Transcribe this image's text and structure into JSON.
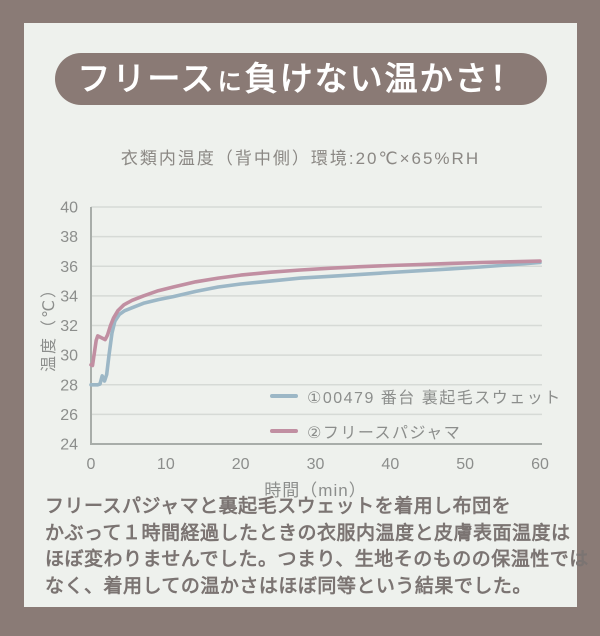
{
  "colors": {
    "background": "#8a7b76",
    "card": "#eef1ed",
    "banner": "#8a7a75",
    "banner_text": "#ffffff",
    "subtitle_text": "#8b8884",
    "caption_text": "#7b7472",
    "tick_text": "#8c8e8c",
    "grid": "#d6dad6",
    "axis": "#a8ada9",
    "series_blue": "#9cb7c6",
    "series_pink": "#c18fa2"
  },
  "title": {
    "seg1": "フリース",
    "seg2": "に",
    "seg3": "負けない温かさ！"
  },
  "subtitle": "衣類内温度（背中側）環境:20℃×65%RH",
  "chart_data": {
    "type": "line",
    "title": "衣類内温度（背中側）環境:20℃×65%RH",
    "xlabel": "時間（min）",
    "ylabel": "温度（℃）",
    "xlim": [
      0,
      60
    ],
    "ylim": [
      24,
      40
    ],
    "x_ticks": [
      0,
      10,
      20,
      30,
      40,
      50,
      60
    ],
    "y_ticks": [
      24,
      26,
      28,
      30,
      32,
      34,
      36,
      38,
      40
    ],
    "grid": true,
    "legend_position": "inside-lower-right",
    "series": [
      {
        "name": "①00479 番台 裏起毛スウェット",
        "color": "#9cb7c6",
        "points": [
          [
            0,
            28.0
          ],
          [
            0.9,
            28.0
          ],
          [
            1.2,
            28.05
          ],
          [
            1.5,
            28.6
          ],
          [
            1.8,
            28.25
          ],
          [
            2.1,
            28.7
          ],
          [
            2.4,
            30.0
          ],
          [
            2.8,
            31.5
          ],
          [
            3.2,
            32.3
          ],
          [
            3.8,
            32.75
          ],
          [
            4.5,
            33.0
          ],
          [
            5.5,
            33.2
          ],
          [
            7,
            33.5
          ],
          [
            9,
            33.75
          ],
          [
            11,
            33.95
          ],
          [
            14,
            34.3
          ],
          [
            17,
            34.6
          ],
          [
            20,
            34.8
          ],
          [
            24,
            35.0
          ],
          [
            28,
            35.2
          ],
          [
            32,
            35.32
          ],
          [
            36,
            35.45
          ],
          [
            40,
            35.58
          ],
          [
            44,
            35.7
          ],
          [
            48,
            35.82
          ],
          [
            52,
            35.95
          ],
          [
            56,
            36.1
          ],
          [
            60,
            36.25
          ]
        ]
      },
      {
        "name": "②フリースパジャマ",
        "color": "#c18fa2",
        "points": [
          [
            0,
            29.35
          ],
          [
            0.2,
            29.3
          ],
          [
            0.7,
            31.0
          ],
          [
            0.9,
            31.3
          ],
          [
            1.3,
            31.2
          ],
          [
            1.9,
            31.05
          ],
          [
            2.2,
            31.35
          ],
          [
            2.6,
            32.0
          ],
          [
            3.0,
            32.5
          ],
          [
            3.6,
            33.0
          ],
          [
            4.4,
            33.4
          ],
          [
            5.5,
            33.7
          ],
          [
            7,
            34.0
          ],
          [
            9,
            34.35
          ],
          [
            11,
            34.6
          ],
          [
            14,
            34.95
          ],
          [
            17,
            35.2
          ],
          [
            20,
            35.4
          ],
          [
            24,
            35.6
          ],
          [
            28,
            35.75
          ],
          [
            32,
            35.87
          ],
          [
            36,
            35.97
          ],
          [
            40,
            36.05
          ],
          [
            44,
            36.12
          ],
          [
            48,
            36.19
          ],
          [
            52,
            36.25
          ],
          [
            56,
            36.3
          ],
          [
            60,
            36.35
          ]
        ]
      }
    ]
  },
  "caption": {
    "lines": [
      "フリースパジャマと裏起毛スウェットを着用し布団を",
      "かぶって１時間経過したときの衣服内温度と皮膚表面温度は",
      "ほぼ変わりませんでした。つまり、生地そのものの保温性では",
      "なく、着用しての温かさはほぼ同等という結果でした。"
    ]
  }
}
